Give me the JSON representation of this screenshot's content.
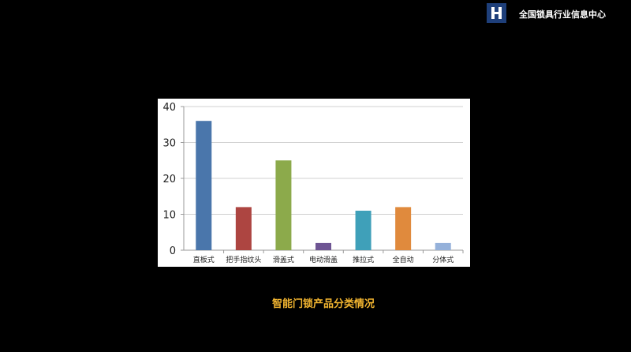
{
  "header": {
    "org_name": "全国锁具行业信息中心",
    "logo_letter": "H"
  },
  "caption": "智能门锁产品分类情况",
  "chart_data": {
    "type": "bar",
    "categories": [
      "直板式",
      "把手指纹头",
      "滑盖式",
      "电动滑盖",
      "推拉式",
      "全自动",
      "分体式"
    ],
    "values": [
      36,
      12,
      25,
      2,
      11,
      12,
      2
    ],
    "colors": [
      "#4a76ab",
      "#ad4541",
      "#8caa4b",
      "#6e5593",
      "#3fa0b9",
      "#e08a3d",
      "#95b1da"
    ],
    "ylim": [
      0,
      40
    ],
    "yticks": [
      0,
      10,
      20,
      30,
      40
    ],
    "grid": true,
    "legend": "none"
  }
}
